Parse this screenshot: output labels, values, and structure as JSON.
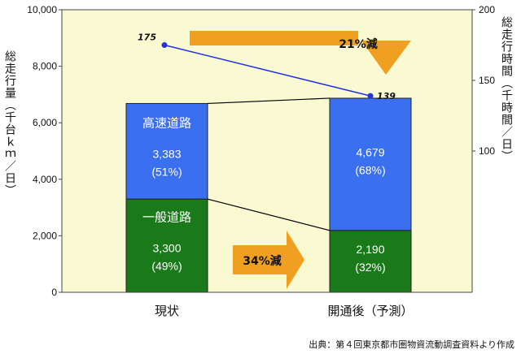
{
  "chart_data": {
    "type": "bar",
    "categories": [
      "現状",
      "開通後（予測）"
    ],
    "series": [
      {
        "name": "一般道路",
        "values": [
          3300,
          2190
        ],
        "labels": [
          "3,300",
          "2,190"
        ],
        "shares": [
          "(49%)",
          "(32%)"
        ],
        "color": "#1a7a1a"
      },
      {
        "name": "高速道路",
        "values": [
          3383,
          4679
        ],
        "labels": [
          "3,383",
          "4,679"
        ],
        "shares": [
          "(51%)",
          "(68%)"
        ],
        "color": "#3a6ff0"
      }
    ],
    "line_series": {
      "values": [
        175,
        139
      ],
      "labels": [
        "175",
        "139"
      ],
      "color": "#2233dd"
    },
    "ylim_left": [
      0,
      10000
    ],
    "yticks_left": [
      "0",
      "2,000",
      "4,000",
      "6,000",
      "8,000",
      "10,000"
    ],
    "ylim_right": [
      0,
      200
    ],
    "yticks_right": [
      "100",
      "150",
      "200"
    ],
    "ylabel_left": "総走行量（千台ｋｍ／日）",
    "ylabel_right": "総走行時間（千時間／日）",
    "annotations": {
      "decrease_bar": "34%減",
      "decrease_line": "21%減"
    },
    "plot_background": "#fafad2",
    "arrow_color": "#f0a020"
  },
  "source": "出典：第４回東京都市圏物資流動調査資料より作成"
}
